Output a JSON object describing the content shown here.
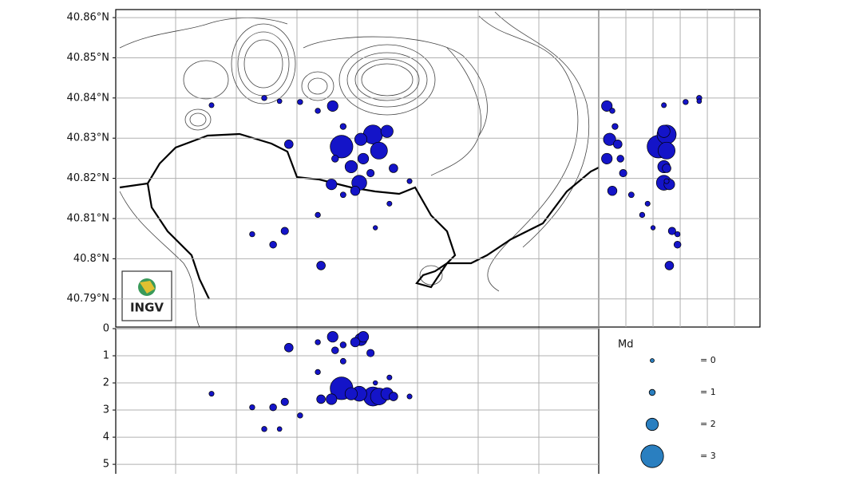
{
  "map": {
    "lat_ticks": [
      {
        "value": 40.86,
        "label": "40.86°N"
      },
      {
        "value": 40.85,
        "label": "40.85°N"
      },
      {
        "value": 40.84,
        "label": "40.84°N"
      },
      {
        "value": 40.83,
        "label": "40.83°N"
      },
      {
        "value": 40.82,
        "label": "40.82°N"
      },
      {
        "value": 40.81,
        "label": "40.81°N"
      },
      {
        "value": 40.8,
        "label": "40.8°N"
      },
      {
        "value": 40.79,
        "label": "40.79°N"
      }
    ],
    "latlim": [
      40.783,
      40.862
    ],
    "lonlim": [
      14.08,
      14.2
    ],
    "depth_ticks": [
      0,
      1,
      2,
      3,
      4,
      5
    ],
    "depthlim": [
      0,
      5.35
    ],
    "logo": "INGV",
    "color": "#1414c8",
    "legend_color": "#2a7fc0",
    "legend": {
      "title": "Md",
      "entries": [
        {
          "value": 0,
          "label": "= 0"
        },
        {
          "value": 1,
          "label": "= 1"
        },
        {
          "value": 2,
          "label": "= 2"
        },
        {
          "value": 3,
          "label": "= 3"
        }
      ]
    },
    "events": [
      {
        "lon": 14.1361,
        "lat": 40.8279,
        "depth": 2.2,
        "md": 3
      },
      {
        "lon": 14.1439,
        "lat": 40.8309,
        "depth": 2.5,
        "md": 2.7
      },
      {
        "lon": 14.1474,
        "lat": 40.8317,
        "depth": 2.4,
        "md": 2
      },
      {
        "lon": 14.1454,
        "lat": 40.8269,
        "depth": 2.5,
        "md": 2.5
      },
      {
        "lon": 14.1405,
        "lat": 40.8189,
        "depth": 2.4,
        "md": 2.3
      },
      {
        "lon": 14.1385,
        "lat": 40.8229,
        "depth": 2.4,
        "md": 2
      },
      {
        "lon": 14.1415,
        "lat": 40.8249,
        "depth": 0.3,
        "md": 1.8
      },
      {
        "lon": 14.1336,
        "lat": 40.8185,
        "depth": 2.6,
        "md": 1.8
      },
      {
        "lon": 14.123,
        "lat": 40.8285,
        "depth": 0.7,
        "md": 1.5
      },
      {
        "lon": 14.131,
        "lat": 40.7983,
        "depth": 2.6,
        "md": 1.5
      },
      {
        "lon": 14.122,
        "lat": 40.8069,
        "depth": 2.7,
        "md": 1.3
      },
      {
        "lon": 14.1191,
        "lat": 40.8035,
        "depth": 2.9,
        "md": 1.2
      },
      {
        "lon": 14.1139,
        "lat": 40.8061,
        "depth": 2.9,
        "md": 0.8
      },
      {
        "lon": 14.1038,
        "lat": 40.8382,
        "depth": 2.4,
        "md": 0.7
      },
      {
        "lon": 14.1169,
        "lat": 40.84,
        "depth": 3.7,
        "md": 0.8
      },
      {
        "lon": 14.1258,
        "lat": 40.839,
        "depth": 3.2,
        "md": 0.8
      },
      {
        "lon": 14.1339,
        "lat": 40.838,
        "depth": 0.3,
        "md": 1.8
      },
      {
        "lon": 14.1302,
        "lat": 40.8368,
        "depth": 0.5,
        "md": 0.8
      },
      {
        "lon": 14.1445,
        "lat": 40.8077,
        "depth": 2.0,
        "md": 0.5
      },
      {
        "lon": 14.148,
        "lat": 40.8137,
        "depth": 1.8,
        "md": 0.7
      },
      {
        "lon": 14.153,
        "lat": 40.8193,
        "depth": 2.5,
        "md": 0.7
      },
      {
        "lon": 14.1365,
        "lat": 40.8159,
        "depth": 1.2,
        "md": 0.9
      },
      {
        "lon": 14.1365,
        "lat": 40.8329,
        "depth": 0.6,
        "md": 1
      },
      {
        "lon": 14.1345,
        "lat": 40.8249,
        "depth": 0.8,
        "md": 1.2
      },
      {
        "lon": 14.1433,
        "lat": 40.8213,
        "depth": 0.9,
        "md": 1.3
      },
      {
        "lon": 14.1409,
        "lat": 40.8297,
        "depth": 0.4,
        "md": 2
      },
      {
        "lon": 14.1302,
        "lat": 40.8109,
        "depth": 1.6,
        "md": 0.8
      },
      {
        "lon": 14.149,
        "lat": 40.8225,
        "depth": 2.5,
        "md": 1.5
      },
      {
        "lon": 14.1395,
        "lat": 40.8169,
        "depth": 0.5,
        "md": 1.6
      },
      {
        "lon": 14.1207,
        "lat": 40.8392,
        "depth": 3.7,
        "md": 0.6
      }
    ]
  }
}
